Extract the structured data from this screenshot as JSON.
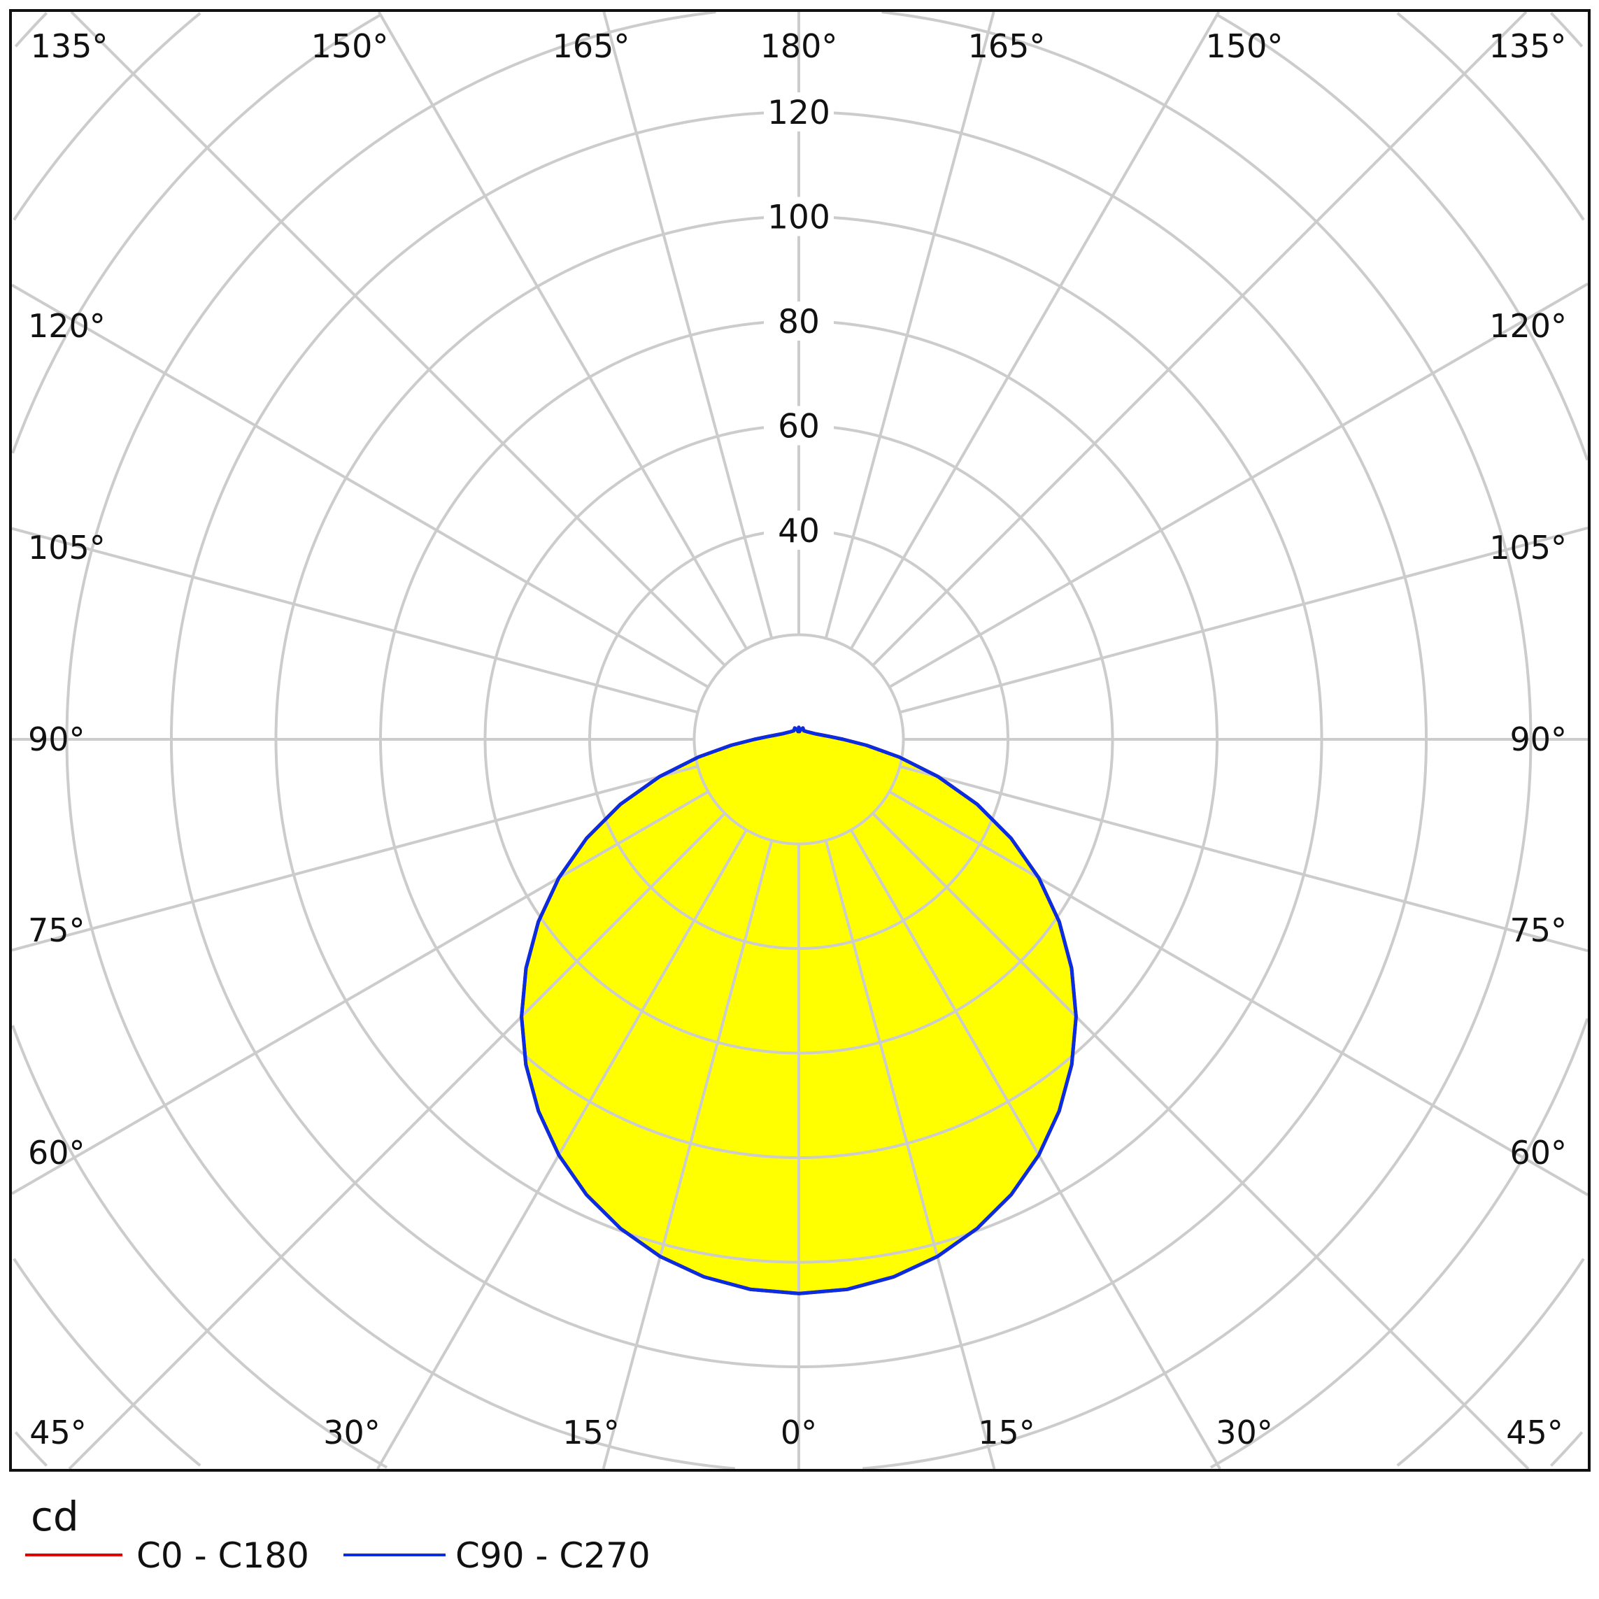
{
  "chart_data": {
    "type": "polar",
    "unit_label": "cd",
    "radial_ticks": [
      40,
      60,
      80,
      100,
      120
    ],
    "radial_step": 20,
    "angle_labels_top": [
      "135°",
      "150°",
      "165°",
      "180°",
      "165°",
      "150°",
      "135°"
    ],
    "angle_labels_left": [
      "120°",
      "105°",
      "90°",
      "75°",
      "60°"
    ],
    "angle_labels_right": [
      "120°",
      "105°",
      "90°",
      "75°",
      "60°"
    ],
    "angle_labels_bottom": [
      "45°",
      "30°",
      "15°",
      "0°",
      "15°",
      "30°",
      "45°"
    ],
    "grid": true,
    "fill_color": "#ffff00",
    "grid_color": "#cccccc",
    "legend_position": "bottom-left",
    "series": [
      {
        "name": "C0 - C180",
        "color": "#e00000",
        "angles": [
          0,
          5,
          10,
          15,
          20,
          25,
          30,
          35,
          40,
          45,
          50,
          55,
          60,
          65,
          70,
          75,
          80,
          85,
          90,
          95,
          100,
          110,
          120,
          135,
          150,
          160,
          170,
          175,
          180
        ],
        "values": [
          106,
          105.6,
          104.4,
          102.4,
          99.6,
          96.1,
          91.8,
          86.8,
          81.2,
          75,
          68.1,
          60.8,
          53,
          44.8,
          36.3,
          27.6,
          19.5,
          13,
          8.5,
          6,
          4.6,
          3.2,
          2.6,
          2.1,
          1.9,
          2.3,
          1.9,
          1.5,
          2.3
        ]
      },
      {
        "name": "C90 - C270",
        "color": "#0a2de0",
        "angles": [
          0,
          5,
          10,
          15,
          20,
          25,
          30,
          35,
          40,
          45,
          50,
          55,
          60,
          65,
          70,
          75,
          80,
          85,
          90,
          95,
          100,
          110,
          120,
          135,
          150,
          160,
          170,
          175,
          180
        ],
        "values": [
          106,
          105.6,
          104.4,
          102.4,
          99.6,
          96.1,
          91.8,
          86.8,
          81.2,
          75,
          68.1,
          60.8,
          53,
          44.8,
          36.3,
          27.6,
          19.5,
          13,
          8.5,
          6,
          4.6,
          3.2,
          2.6,
          2.1,
          1.9,
          2.3,
          1.9,
          1.5,
          2.3
        ]
      }
    ]
  }
}
